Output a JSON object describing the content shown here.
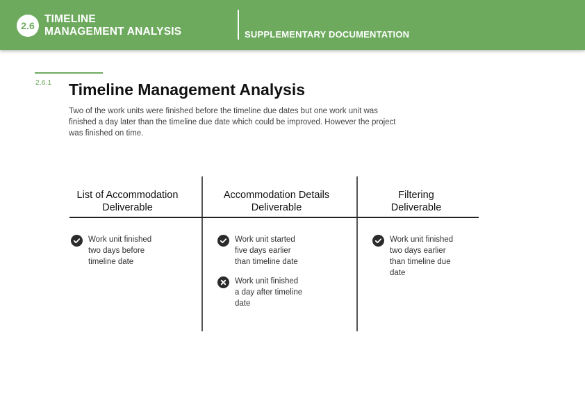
{
  "header": {
    "badge": "2.6",
    "title_line1": "TIMELINE",
    "title_line2": "MANAGEMENT ANALYSIS",
    "subtitle": "SUPPLEMENTARY DOCUMENTATION",
    "color": "#6daa5e"
  },
  "section": {
    "number": "2.6.1",
    "title": "Timeline Management Analysis",
    "description": "Two of the work units were finished before the timeline due dates but one work unit was finished a day later than the timeline due date which could be improved. However the project was finished on time."
  },
  "columns": [
    {
      "heading_line1": "List of Accommodation",
      "heading_line2": "Deliverable",
      "items": [
        {
          "icon": "check-circle-icon",
          "lines": [
            "Work unit finished",
            "two days before",
            "timeline date"
          ]
        }
      ]
    },
    {
      "heading_line1": "Accommodation Details",
      "heading_line2": "Deliverable",
      "items": [
        {
          "icon": "check-circle-icon",
          "lines": [
            "Work unit started",
            "five days earlier",
            "than timeline date"
          ]
        },
        {
          "icon": "cross-circle-icon",
          "lines": [
            "Work unit finished",
            "a day after timeline",
            "date"
          ]
        }
      ]
    },
    {
      "heading_line1": "Filtering",
      "heading_line2": "Deliverable",
      "items": [
        {
          "icon": "check-circle-icon",
          "lines": [
            "Work unit finished",
            "two days earlier",
            "than timeline due",
            "date"
          ]
        }
      ]
    }
  ]
}
